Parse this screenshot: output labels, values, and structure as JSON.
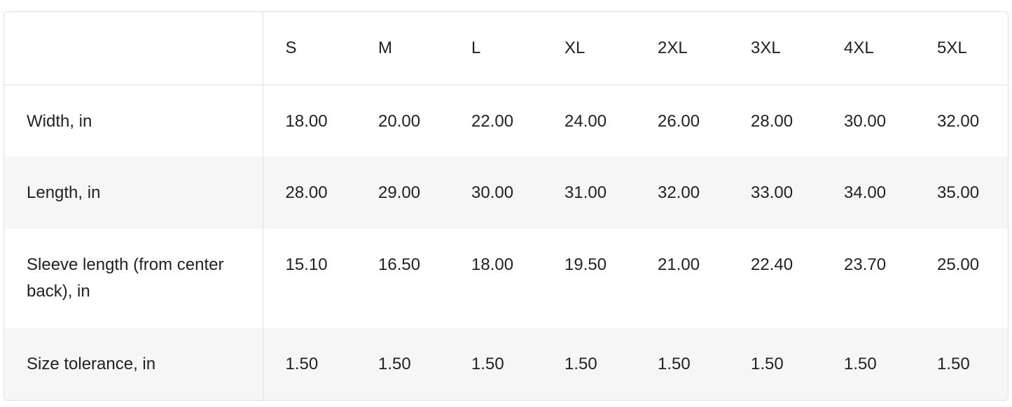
{
  "sizes": [
    "S",
    "M",
    "L",
    "XL",
    "2XL",
    "3XL",
    "4XL",
    "5XL"
  ],
  "rows": [
    {
      "label": "Width, in",
      "values": [
        "18.00",
        "20.00",
        "22.00",
        "24.00",
        "26.00",
        "28.00",
        "30.00",
        "32.00"
      ]
    },
    {
      "label": "Length, in",
      "values": [
        "28.00",
        "29.00",
        "30.00",
        "31.00",
        "32.00",
        "33.00",
        "34.00",
        "35.00"
      ]
    },
    {
      "label": "Sleeve length (from center back), in",
      "values": [
        "15.10",
        "16.50",
        "18.00",
        "19.50",
        "21.00",
        "22.40",
        "23.70",
        "25.00"
      ]
    },
    {
      "label": "Size tolerance, in",
      "values": [
        "1.50",
        "1.50",
        "1.50",
        "1.50",
        "1.50",
        "1.50",
        "1.50",
        "1.50"
      ]
    }
  ]
}
